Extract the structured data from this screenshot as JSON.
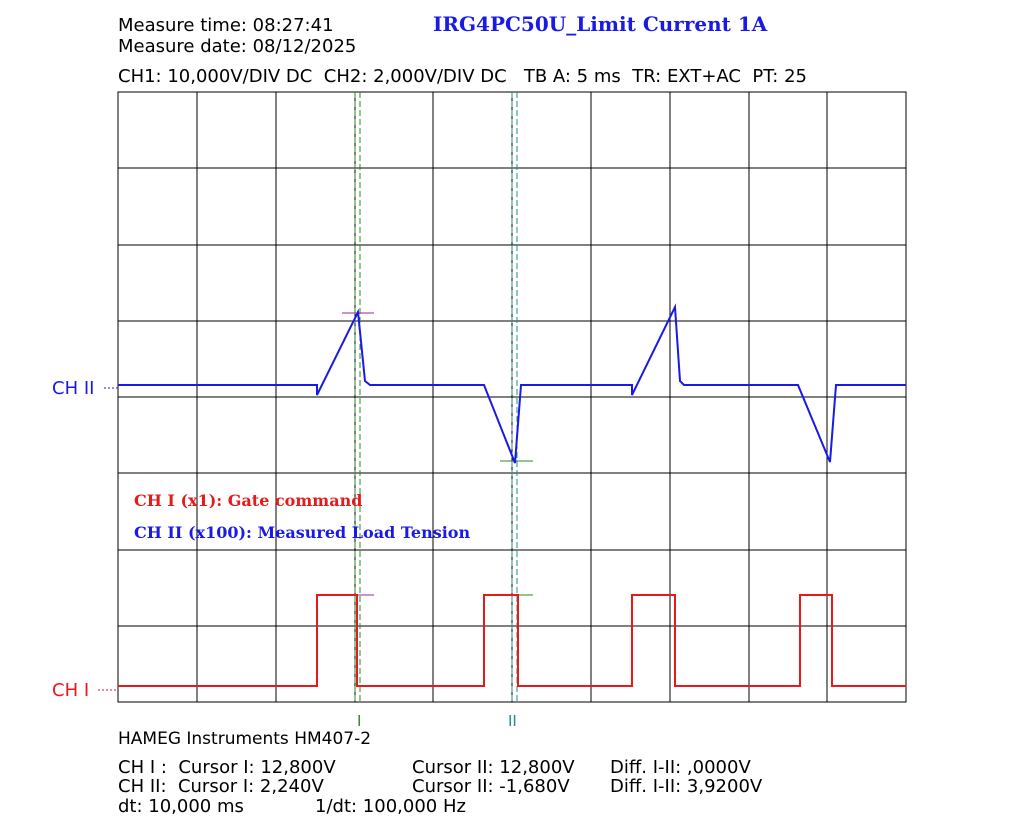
{
  "header": {
    "measure_time": "Measure time: 08:27:41",
    "measure_date": "Measure date: 08/12/2025",
    "title": "IRG4PC50U_Limit Current 1A",
    "settings": "CH1: 10,000V/DIV DC  CH2: 2,000V/DIV DC   TB A: 5 ms  TR: EXT+AC  PT: 25"
  },
  "screen": {
    "ch2_marker": "CH II",
    "ch1_marker": "CH I",
    "legend": [
      "CH I (x1): Gate command",
      "CH II (x100): Measured Load Tension"
    ],
    "cursor_labels": [
      "I",
      "II"
    ]
  },
  "footer": {
    "instrument": "HAMEG Instruments HM407-2",
    "rows": [
      [
        "CH I :  Cursor I: 12,800V",
        "Cursor II: 12,800V",
        "Diff. I-II: ,0000V"
      ],
      [
        "CH II:  Cursor I: 2,240V",
        "Cursor II: -1,680V",
        "Diff. I-II: 3,9200V"
      ],
      [
        "dt: 10,000 ms",
        "1/dt: 100,000 Hz"
      ]
    ]
  }
}
